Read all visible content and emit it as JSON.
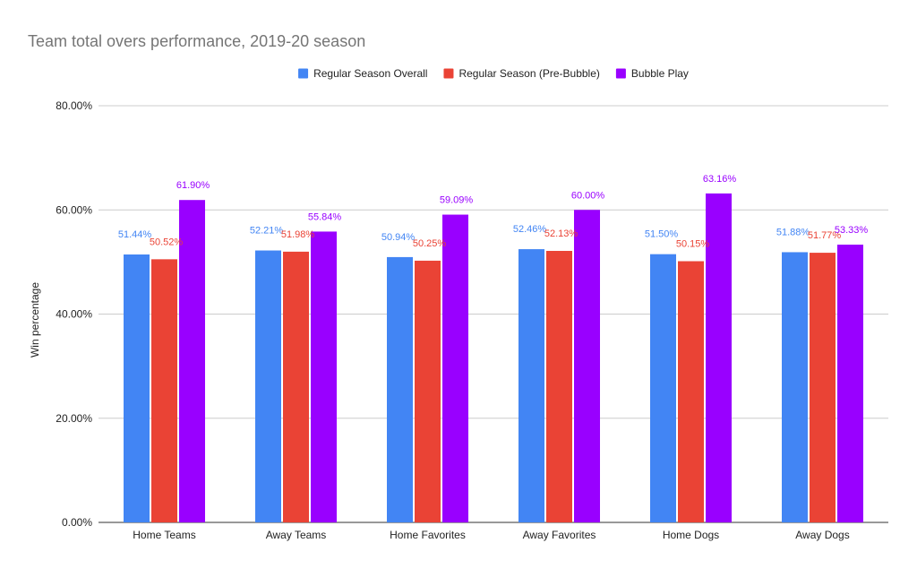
{
  "chart_data": {
    "type": "bar",
    "title": "Team total overs performance, 2019-20 season",
    "xlabel": "",
    "ylabel": "Win percentage",
    "ylim": [
      0,
      80
    ],
    "yticks": [
      0,
      20,
      40,
      60,
      80
    ],
    "ytick_labels": [
      "0.00%",
      "20.00%",
      "40.00%",
      "60.00%",
      "80.00%"
    ],
    "grid": true,
    "legend_position": "top",
    "categories": [
      "Home Teams",
      "Away Teams",
      "Home Favorites",
      "Away Favorites",
      "Home Dogs",
      "Away Dogs"
    ],
    "series": [
      {
        "name": "Regular Season Overall",
        "color": "#4285f4",
        "values": [
          51.44,
          52.21,
          50.94,
          52.46,
          51.5,
          51.88
        ],
        "labels": [
          "51.44%",
          "52.21%",
          "50.94%",
          "52.46%",
          "51.50%",
          "51.88%"
        ]
      },
      {
        "name": "Regular Season (Pre-Bubble)",
        "color": "#ea4335",
        "values": [
          50.52,
          51.98,
          50.25,
          52.13,
          50.15,
          51.77
        ],
        "labels": [
          "50.52%",
          "51.98%",
          "50.25%",
          "52.13%",
          "50.15%",
          "51.77%"
        ]
      },
      {
        "name": "Bubble Play",
        "color": "#9900ff",
        "values": [
          61.9,
          55.84,
          59.09,
          60.0,
          63.16,
          53.33
        ],
        "labels": [
          "61.90%",
          "55.84%",
          "59.09%",
          "60.00%",
          "63.16%",
          "53.33%"
        ]
      }
    ]
  }
}
